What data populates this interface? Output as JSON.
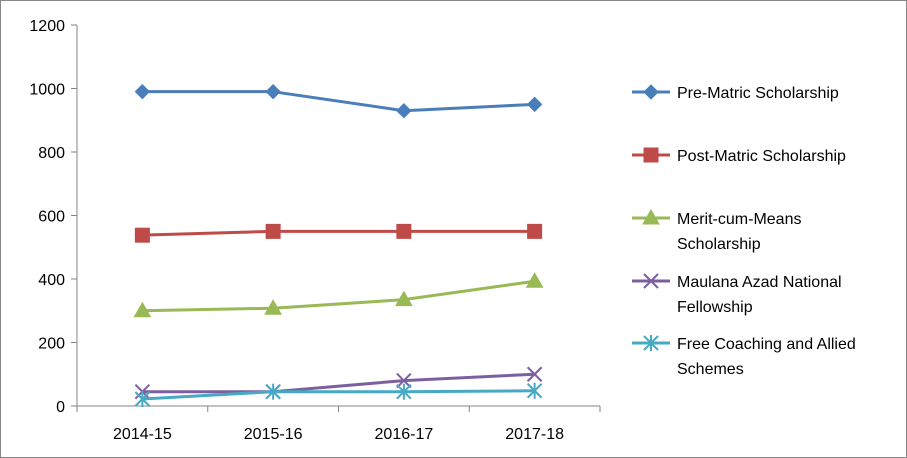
{
  "chart_data": {
    "type": "line",
    "categories": [
      "2014-15",
      "2015-16",
      "2016-17",
      "2017-18"
    ],
    "ylim": [
      0,
      1200
    ],
    "yticks": [
      0,
      200,
      400,
      600,
      800,
      1000,
      1200
    ],
    "grid": false,
    "legend_position": "right",
    "series": [
      {
        "name": "Pre-Matric Scholarship",
        "legend_lines": [
          "Pre-Matric Scholarship"
        ],
        "color": "#4a7ebb",
        "marker": "diamond",
        "values": [
          990,
          990,
          930,
          950
        ]
      },
      {
        "name": "Post-Matric Scholarship",
        "legend_lines": [
          "Post-Matric Scholarship"
        ],
        "color": "#be4b48",
        "marker": "square",
        "values": [
          538,
          550,
          550,
          550
        ]
      },
      {
        "name": "Merit-cum-Means Scholarship",
        "legend_lines": [
          "Merit-cum-Means",
          "Scholarship"
        ],
        "color": "#98b954",
        "marker": "triangle",
        "values": [
          300,
          308,
          335,
          393
        ]
      },
      {
        "name": "Maulana Azad National Fellowship",
        "legend_lines": [
          "Maulana Azad National",
          "Fellowship"
        ],
        "color": "#7d5fa0",
        "marker": "x",
        "values": [
          45,
          45,
          80,
          100
        ]
      },
      {
        "name": "Free Coaching and Allied Schemes",
        "legend_lines": [
          "Free Coaching and Allied",
          "Schemes"
        ],
        "color": "#46aac5",
        "marker": "asterisk",
        "values": [
          22,
          45,
          45,
          48
        ]
      }
    ]
  }
}
